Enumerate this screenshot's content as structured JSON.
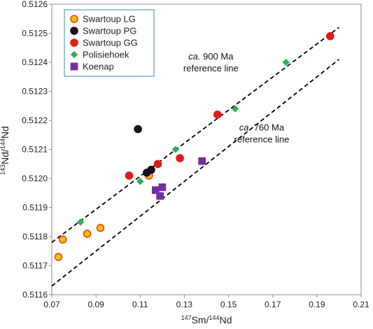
{
  "chart_data": {
    "type": "scatter",
    "xlabel": "147Sm/144Nd",
    "ylabel": "143Nd/144Nd",
    "xlim": [
      0.07,
      0.21
    ],
    "ylim": [
      0.5116,
      0.5126
    ],
    "x_ticks": [
      "0.07",
      "0.09",
      "0.11",
      "0.13",
      "0.15",
      "0.17",
      "0.19",
      "0.21"
    ],
    "y_ticks": [
      "0.5116",
      "0.5117",
      "0.5118",
      "0.5119",
      "0.5120",
      "0.5121",
      "0.5122",
      "0.5123",
      "0.5124",
      "0.5125",
      "0.5126"
    ],
    "grid": false,
    "legend_position": "top-left",
    "series": [
      {
        "name": "Swartoup LG",
        "marker": "circle",
        "fill": "#ffc000",
        "stroke": "#e8461c",
        "points": [
          [
            0.073,
            0.51173
          ],
          [
            0.075,
            0.51179
          ],
          [
            0.086,
            0.51181
          ],
          [
            0.092,
            0.51183
          ],
          [
            0.114,
            0.51201
          ]
        ]
      },
      {
        "name": "Swartoup PG",
        "marker": "circle",
        "fill": "#1a1020",
        "stroke": "#1a1020",
        "points": [
          [
            0.109,
            0.51217
          ],
          [
            0.113,
            0.51202
          ],
          [
            0.115,
            0.51203
          ]
        ]
      },
      {
        "name": "Swartoup GG",
        "marker": "circle",
        "fill": "#e31a1c",
        "stroke": "#e31a1c",
        "points": [
          [
            0.105,
            0.51201
          ],
          [
            0.118,
            0.51205
          ],
          [
            0.128,
            0.51207
          ],
          [
            0.145,
            0.51222
          ],
          [
            0.196,
            0.51249
          ]
        ]
      },
      {
        "name": "Polisiehoek",
        "marker": "diamond",
        "fill": "#2db34a",
        "stroke": "#2db34a",
        "points": [
          [
            0.083,
            0.51185
          ],
          [
            0.11,
            0.51199
          ],
          [
            0.126,
            0.5121
          ],
          [
            0.153,
            0.51224
          ],
          [
            0.176,
            0.5124
          ]
        ]
      },
      {
        "name": "Koenap",
        "marker": "square",
        "fill": "#7030a0",
        "stroke": "#7030a0",
        "points": [
          [
            0.117,
            0.51196
          ],
          [
            0.119,
            0.51194
          ],
          [
            0.12,
            0.51197
          ],
          [
            0.138,
            0.51206
          ]
        ]
      }
    ],
    "reference_lines": [
      {
        "style": "dashed",
        "color": "#000000",
        "from": [
          0.07,
          0.51178
        ],
        "to": [
          0.2,
          0.51252
        ],
        "label_age": "ca.",
        "label_rest": " 900 Ma",
        "label_line2": "reference line"
      },
      {
        "style": "dashed",
        "color": "#000000",
        "from": [
          0.07,
          0.51163
        ],
        "to": [
          0.2,
          0.51241
        ],
        "label_age": "ca.",
        "label_rest": " 760 Ma",
        "label_line2": "reference line"
      }
    ],
    "xlabel_parts": {
      "sup1": "147",
      "base1": "Sm/",
      "sup2": "144",
      "base2": "Nd"
    },
    "ylabel_parts": {
      "sup1": "143",
      "base1": "Nd/",
      "sup2": "144",
      "base2": "Nd"
    }
  }
}
